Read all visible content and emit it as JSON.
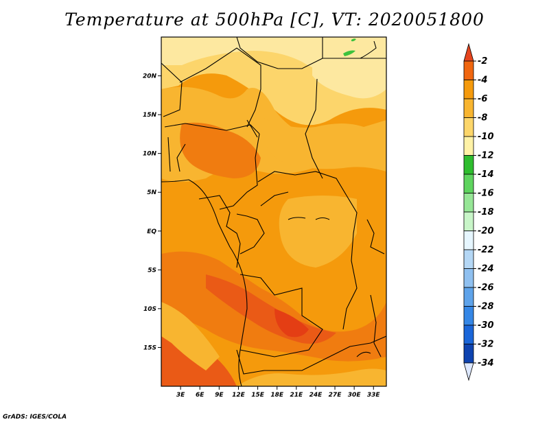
{
  "title": "Temperature at 500hPa [C], VT: 2020051800",
  "credit": "GrADS: IGES/COLA",
  "map": {
    "lon_range": [
      0,
      35
    ],
    "lat_range": [
      -20,
      25
    ],
    "lat_ticks": [
      "20N",
      "15N",
      "10N",
      "5N",
      "EQ",
      "5S",
      "10S",
      "15S"
    ],
    "lat_tick_values": [
      20,
      15,
      10,
      5,
      0,
      -5,
      -10,
      -15
    ],
    "lon_ticks": [
      "3E",
      "6E",
      "9E",
      "12E",
      "15E",
      "18E",
      "21E",
      "24E",
      "27E",
      "30E",
      "33E"
    ],
    "lon_tick_values": [
      3,
      6,
      9,
      12,
      15,
      18,
      21,
      24,
      27,
      30,
      33
    ]
  },
  "colorbar": {
    "labels": [
      "-2",
      "-4",
      "-6",
      "-8",
      "-10",
      "-12",
      "-14",
      "-16",
      "-18",
      "-20",
      "-22",
      "-24",
      "-26",
      "-28",
      "-30",
      "-32",
      "-34"
    ],
    "colors": [
      "#e6451e",
      "#f0660f",
      "#f59a0c",
      "#f8b530",
      "#fcd66a",
      "#fff2a6",
      "#2ebd2e",
      "#5ed45e",
      "#96e696",
      "#c8f5c8",
      "#e6f6ff",
      "#b4d7f5",
      "#8fc0f0",
      "#5ea3ea",
      "#3587e6",
      "#1a66d9",
      "#0e43b0",
      "#0a1e82"
    ],
    "top_color": "#e6451e",
    "bottom_color": "#dde8ff"
  },
  "colors": {
    "field_light": "#fde8a0",
    "field_pale": "#fcd56b",
    "field_mid": "#f8b530",
    "field_dark": "#f59a0c",
    "field_deep": "#f07c10",
    "field_hot": "#ea5a16",
    "field_hottest": "#e43e14",
    "green": "#3dc23d",
    "border": "#000000"
  }
}
